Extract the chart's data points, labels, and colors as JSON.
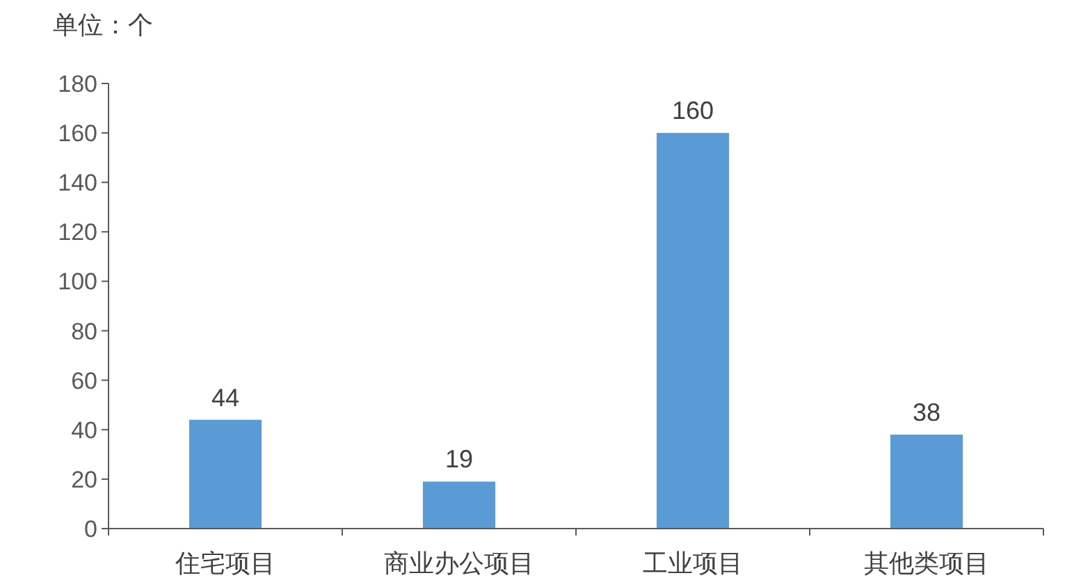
{
  "chart_data": {
    "type": "bar",
    "ylabel": "单位：个",
    "categories": [
      "住宅项目",
      "商业办公项目",
      "工业项目",
      "其他类项目"
    ],
    "values": [
      44,
      19,
      160,
      38
    ],
    "color": "#5b9bd5",
    "ylim": [
      0,
      180
    ],
    "yticks": [
      0,
      20,
      40,
      60,
      80,
      100,
      120,
      140,
      160,
      180
    ],
    "data_labels": true
  }
}
